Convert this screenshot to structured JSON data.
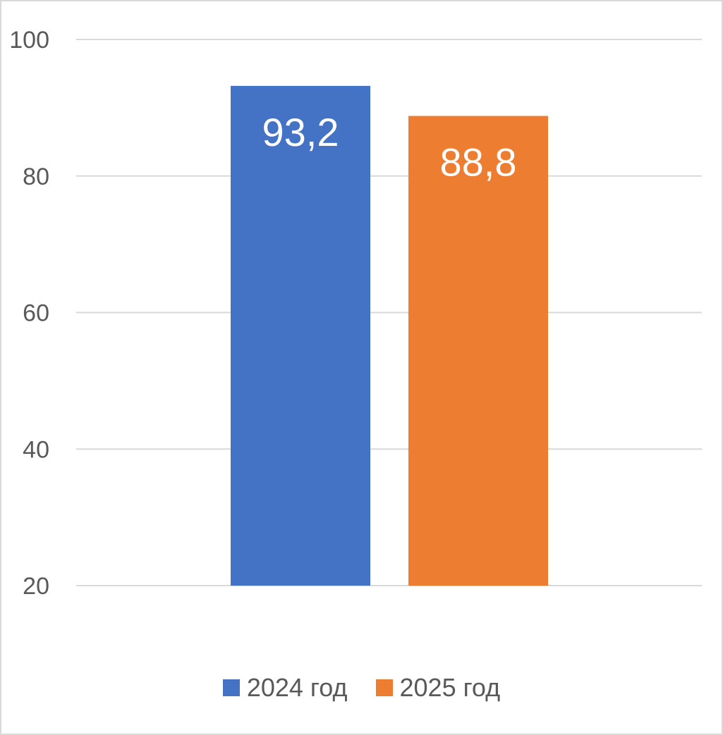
{
  "chart_data": {
    "type": "bar",
    "title": "",
    "xlabel": "",
    "ylabel": "",
    "ylim": [
      20,
      100
    ],
    "yticks": [
      20,
      40,
      60,
      80,
      100
    ],
    "ytick_labels": [
      "20",
      "40",
      "60",
      "80",
      "100"
    ],
    "grid": true,
    "legend_position": "bottom",
    "series": [
      {
        "name": "2024 год",
        "value": 93.2,
        "label": "93,2",
        "color": "#4472C4"
      },
      {
        "name": "2025 год",
        "value": 88.8,
        "label": "88,8",
        "color": "#ED7D31"
      }
    ]
  }
}
